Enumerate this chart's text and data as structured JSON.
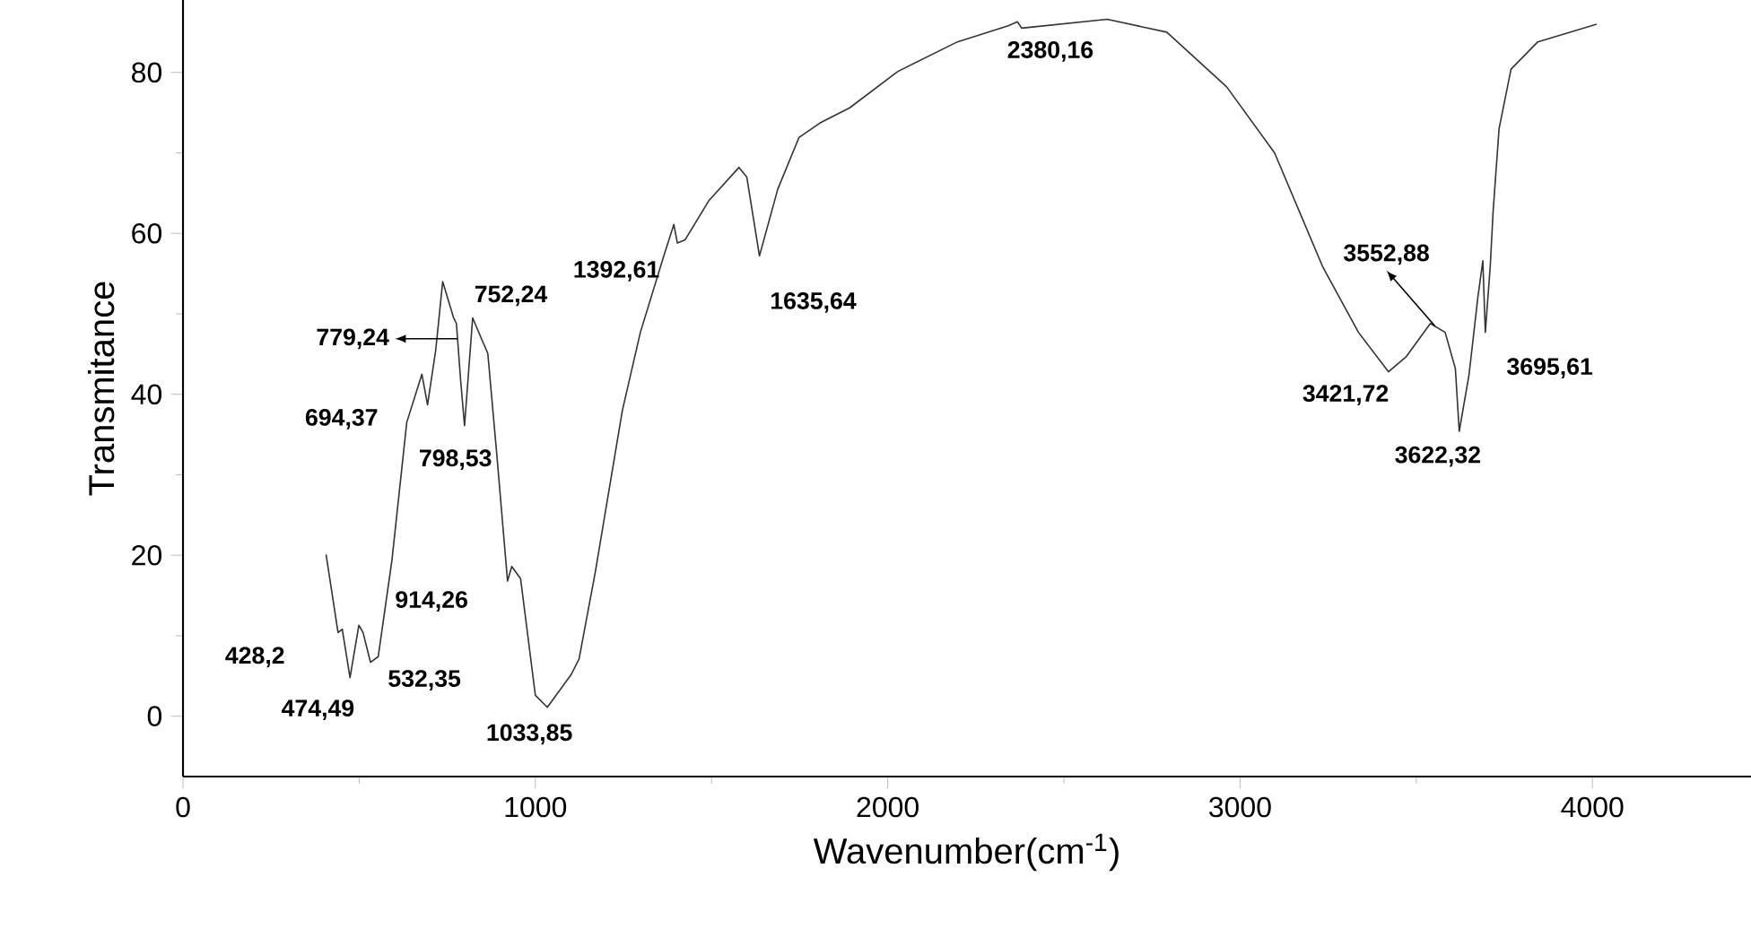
{
  "chart_data": {
    "type": "line",
    "xlabel": "Wavenumber(cm$^{-1}$)",
    "ylabel": "Transmitance",
    "xlim": [
      0,
      4450
    ],
    "ylim": [
      -7.5,
      89
    ],
    "xticks": [
      0,
      1000,
      2000,
      3000,
      4000
    ],
    "yticks": [
      0,
      20,
      40,
      60,
      80
    ],
    "grid": false,
    "marker": "none",
    "line_style": "solid",
    "series": [
      {
        "color": "#333333",
        "x": [
          406,
          440,
          452,
          474,
          499,
          511,
          532,
          554,
          593,
          635,
          678,
          694,
          717,
          737,
          768,
          776,
          788,
          799,
          822,
          847,
          865,
          890,
          921,
          933,
          958,
          1000,
          1034,
          1102,
          1124,
          1170,
          1247,
          1298,
          1366,
          1393,
          1403,
          1425,
          1493,
          1578,
          1600,
          1636,
          1688,
          1748,
          1807,
          1892,
          2028,
          2198,
          2342,
          2368,
          2380,
          2623,
          2792,
          2962,
          3098,
          3234,
          3336,
          3421,
          3472,
          3540,
          3582,
          3611,
          3622,
          3650,
          3675,
          3689,
          3696,
          3710,
          3718,
          3735,
          3769,
          3845,
          4012
        ],
        "values": [
          20.1,
          10.4,
          10.8,
          4.8,
          11.3,
          10.4,
          6.7,
          7.4,
          19.4,
          36.5,
          42.5,
          38.7,
          45.4,
          54.0,
          49.5,
          48.8,
          41.7,
          36.1,
          49.5,
          46.9,
          45.1,
          32.8,
          16.8,
          18.6,
          17.1,
          2.6,
          1.1,
          5.2,
          7.1,
          17.9,
          38.0,
          47.7,
          57.4,
          61.1,
          58.8,
          59.2,
          64.1,
          68.2,
          67.0,
          57.2,
          65.5,
          71.9,
          73.7,
          75.6,
          80.1,
          83.8,
          85.8,
          86.3,
          85.5,
          86.6,
          85.0,
          78.2,
          70.0,
          55.9,
          47.7,
          42.8,
          44.7,
          48.8,
          47.7,
          43.2,
          35.4,
          42.5,
          52.1,
          56.6,
          47.7,
          55.9,
          62.6,
          73.0,
          80.4,
          83.8,
          86.0
        ]
      }
    ],
    "annotations": [
      {
        "text": "428,2",
        "x": 428.2,
        "y": 13.8
      },
      {
        "text": "474,49",
        "x": 474.49,
        "y": 4.8
      },
      {
        "text": "532,35",
        "x": 532.35,
        "y": 6.7
      },
      {
        "text": "914,26",
        "x": 914.26,
        "y": 20.3
      },
      {
        "text": "694,37",
        "x": 694.37,
        "y": 38.7
      },
      {
        "text": "779,24",
        "x": 779.24,
        "y": 46.9
      },
      {
        "text": "798,53",
        "x": 798.53,
        "y": 36.1
      },
      {
        "text": "752,24",
        "x": 752.24,
        "y": 51.8
      },
      {
        "text": "1033,85",
        "x": 1033.85,
        "y": 1.1
      },
      {
        "text": "1392,61",
        "x": 1392.61,
        "y": 61.1
      },
      {
        "text": "1635,64",
        "x": 1635.64,
        "y": 57.2
      },
      {
        "text": "2380,16",
        "x": 2380.16,
        "y": 85.5
      },
      {
        "text": "3552,88",
        "x": 3552.88,
        "y": 48.5
      },
      {
        "text": "3421,72",
        "x": 3421.72,
        "y": 42.8
      },
      {
        "text": "3622,32",
        "x": 3622.32,
        "y": 35.4
      },
      {
        "text": "3695,61",
        "x": 3695.61,
        "y": 47.7
      }
    ]
  }
}
